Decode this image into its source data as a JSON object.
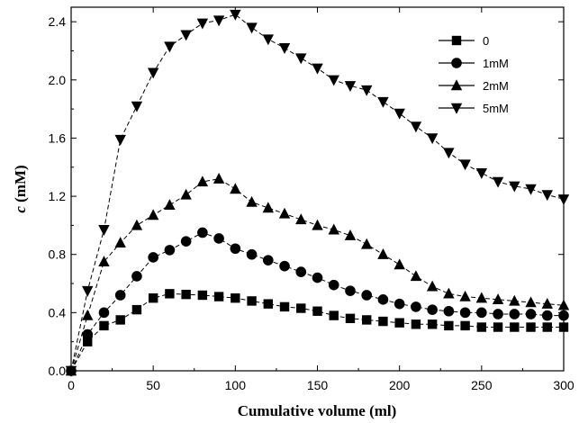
{
  "chart_data": {
    "type": "line",
    "title": "",
    "xlabel": "Cumulative volume (ml)",
    "ylabel_italic": "c",
    "ylabel_rest": " (mM)",
    "xlim": [
      0,
      300
    ],
    "ylim": [
      0,
      2.5
    ],
    "xticks": [
      0,
      50,
      100,
      150,
      200,
      250,
      300
    ],
    "xtick_labels": [
      "0",
      "50",
      "100",
      "150",
      "200",
      "250",
      "300"
    ],
    "yticks": [
      0,
      0.4,
      0.8,
      1.2,
      1.6,
      2.0,
      2.4
    ],
    "ytick_labels": [
      "0.0",
      "0.4",
      "0.8",
      "1.2",
      "1.6",
      "2.0",
      "2.4"
    ],
    "grid": false,
    "legend_position": "top-right",
    "line_style": "dashed",
    "x": [
      0,
      10,
      20,
      30,
      40,
      50,
      60,
      70,
      80,
      90,
      100,
      110,
      120,
      130,
      140,
      150,
      160,
      170,
      180,
      190,
      200,
      210,
      220,
      230,
      240,
      250,
      260,
      270,
      280,
      290,
      300
    ],
    "series": [
      {
        "name": "0",
        "marker": "square",
        "values": [
          0.0,
          0.2,
          0.31,
          0.35,
          0.42,
          0.5,
          0.53,
          0.525,
          0.52,
          0.51,
          0.5,
          0.48,
          0.46,
          0.44,
          0.43,
          0.41,
          0.38,
          0.36,
          0.35,
          0.34,
          0.33,
          0.32,
          0.32,
          0.31,
          0.31,
          0.3,
          0.3,
          0.3,
          0.3,
          0.3,
          0.3
        ]
      },
      {
        "name": "1mM",
        "marker": "circle",
        "values": [
          0.0,
          0.25,
          0.4,
          0.52,
          0.65,
          0.78,
          0.83,
          0.89,
          0.95,
          0.91,
          0.84,
          0.8,
          0.76,
          0.72,
          0.68,
          0.64,
          0.59,
          0.55,
          0.52,
          0.49,
          0.46,
          0.44,
          0.42,
          0.41,
          0.4,
          0.4,
          0.39,
          0.39,
          0.39,
          0.38,
          0.38
        ]
      },
      {
        "name": "2mM",
        "marker": "triangle-up",
        "values": [
          0.0,
          0.38,
          0.75,
          0.88,
          1.0,
          1.07,
          1.14,
          1.21,
          1.3,
          1.32,
          1.25,
          1.16,
          1.12,
          1.08,
          1.04,
          1.0,
          0.97,
          0.93,
          0.87,
          0.8,
          0.73,
          0.65,
          0.58,
          0.53,
          0.51,
          0.5,
          0.49,
          0.48,
          0.47,
          0.46,
          0.45
        ]
      },
      {
        "name": "5mM",
        "marker": "triangle-down",
        "values": [
          0.0,
          0.55,
          0.97,
          1.59,
          1.82,
          2.05,
          2.23,
          2.31,
          2.39,
          2.41,
          2.45,
          2.36,
          2.28,
          2.22,
          2.15,
          2.08,
          2.0,
          1.96,
          1.93,
          1.85,
          1.77,
          1.68,
          1.6,
          1.5,
          1.42,
          1.36,
          1.3,
          1.27,
          1.25,
          1.21,
          1.18
        ]
      }
    ]
  }
}
